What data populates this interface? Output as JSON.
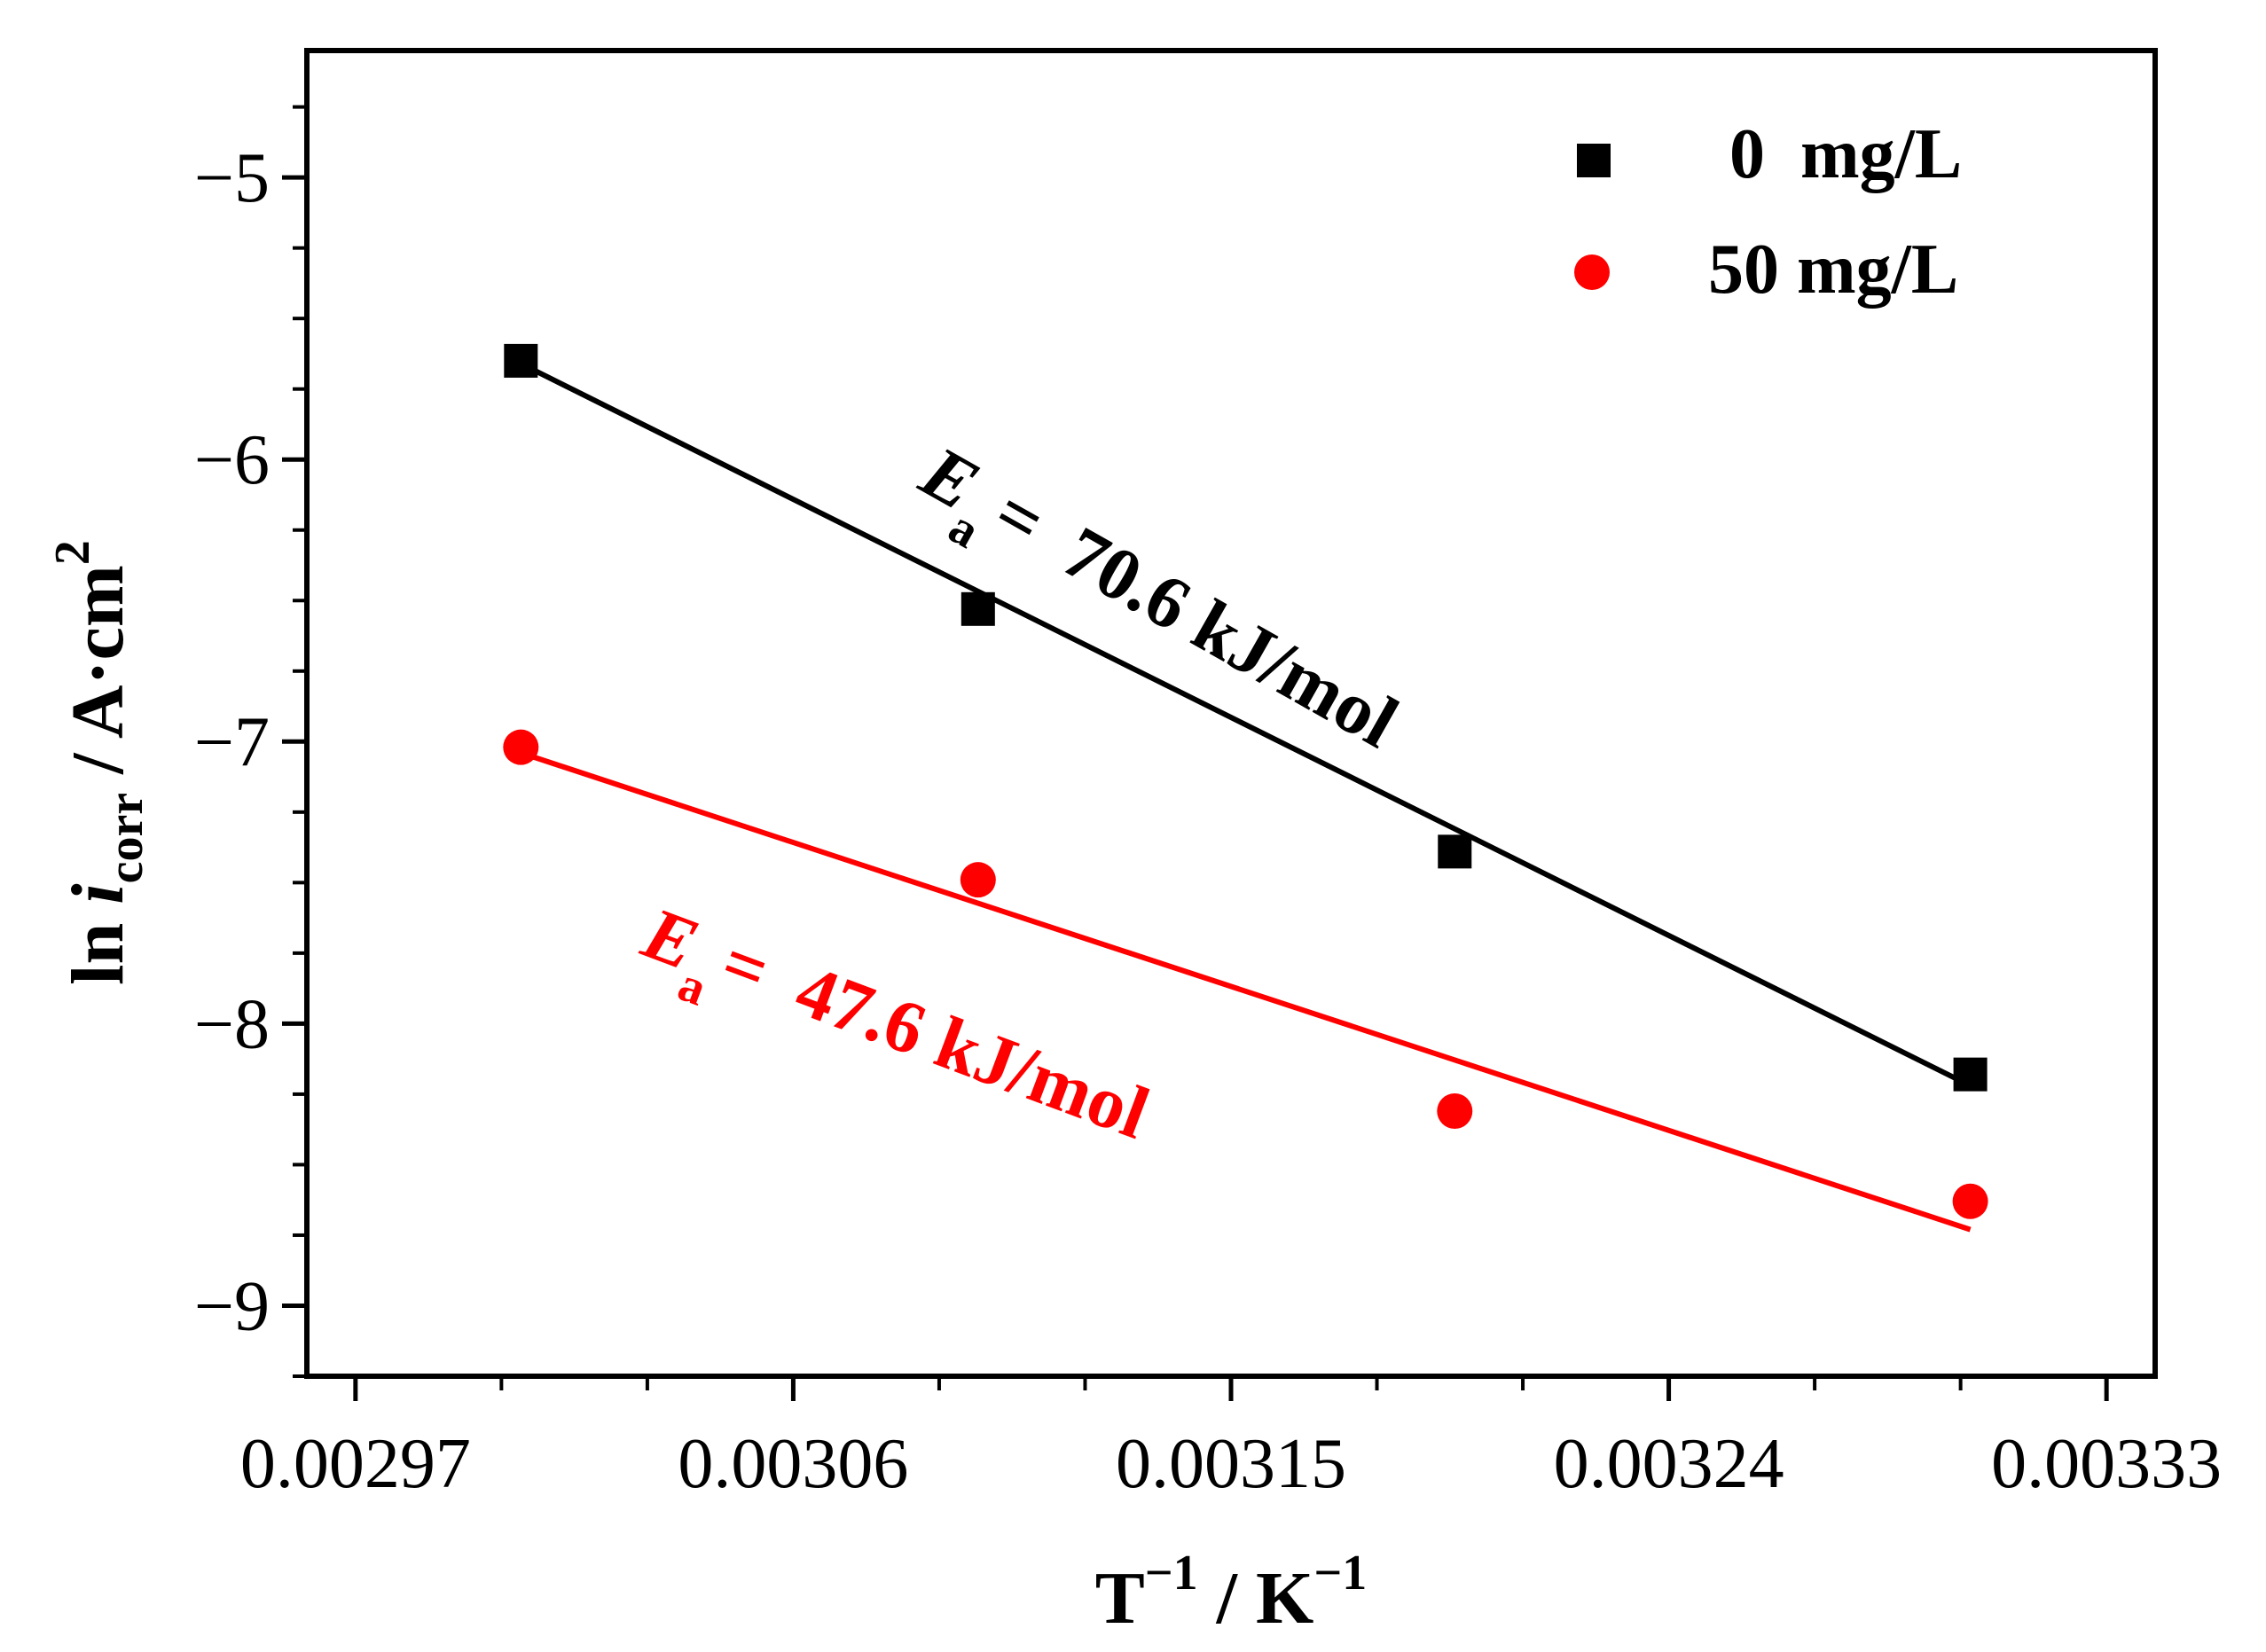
{
  "chart_data": {
    "type": "scatter",
    "title": "",
    "xlabel": {
      "main": "T",
      "sup1": "−1",
      "sep": " / K",
      "sup2": "−1"
    },
    "ylabel": {
      "pre": "ln ",
      "italic": "i",
      "sub": "corr",
      "post": " / A·cm",
      "sup": "2"
    },
    "xlim": [
      0.00296,
      0.00334
    ],
    "ylim": [
      -9.25,
      -4.55
    ],
    "xticks": [
      0.00297,
      0.00306,
      0.00315,
      0.00324,
      0.00333
    ],
    "xtick_labels": [
      "0.00297",
      "0.00306",
      "0.00315",
      "0.00324",
      "0.00333"
    ],
    "yticks": [
      -9,
      -8,
      -7,
      -6,
      -5
    ],
    "ytick_labels": [
      "−9",
      "−8",
      "−7",
      "−6",
      "−5"
    ],
    "grid": false,
    "legend_position": "top-right",
    "series": [
      {
        "name": "0  mg/L",
        "marker": "square",
        "color": "#000000",
        "x": [
          0.003004,
          0.003098,
          0.003196,
          0.003302
        ],
        "y": [
          -5.65,
          -6.53,
          -7.39,
          -8.18
        ],
        "fit": {
          "x": [
            0.003004,
            0.003302
          ],
          "y": [
            -5.66,
            -8.22
          ]
        },
        "annotation": {
          "E": "E",
          "sub": "a",
          "text": "=  70.6 kJ/mol"
        }
      },
      {
        "name": "50 mg/L",
        "marker": "circle",
        "color": "#ff0000",
        "x": [
          0.003004,
          0.003098,
          0.003196,
          0.003302
        ],
        "y": [
          -7.02,
          -7.49,
          -8.31,
          -8.63
        ],
        "fit": {
          "x": [
            0.003004,
            0.003302
          ],
          "y": [
            -7.04,
            -8.73
          ]
        },
        "annotation": {
          "E": "E",
          "sub": "a",
          "text": "=  47.6 kJ/mol"
        }
      }
    ]
  }
}
